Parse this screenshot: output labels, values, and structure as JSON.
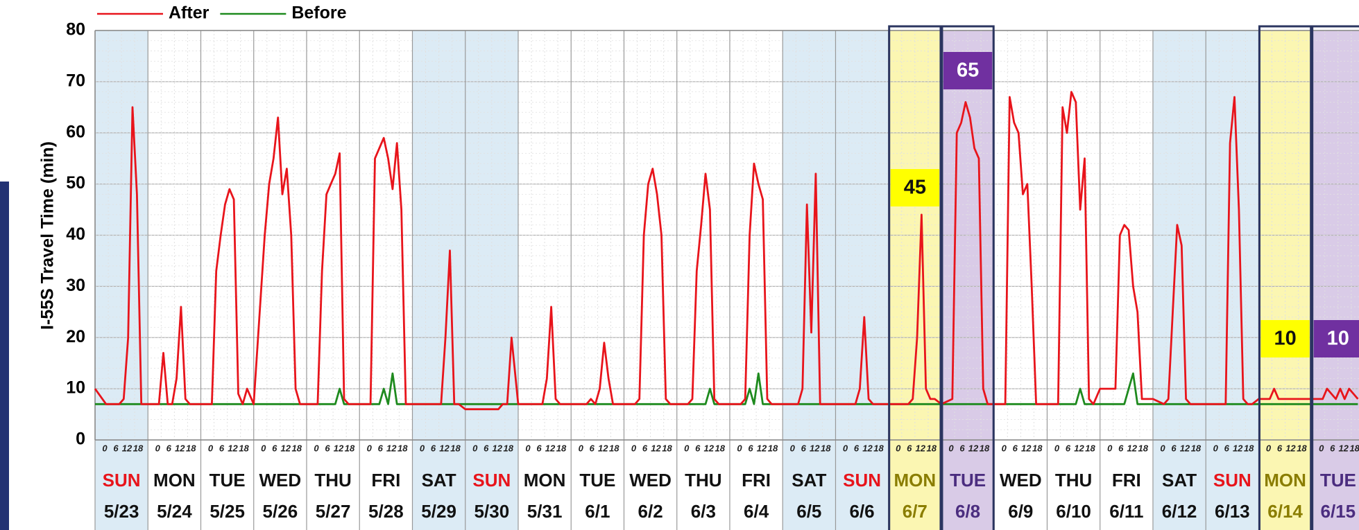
{
  "chart_data": {
    "type": "line",
    "y_label": "I-55S Travel Time (min)",
    "ylim": [
      0,
      80
    ],
    "yticks": [
      0,
      10,
      20,
      30,
      40,
      50,
      60,
      70,
      80
    ],
    "xlim": [
      0,
      573.5
    ],
    "grid": true,
    "hour_labels": [
      0,
      6,
      12,
      18
    ],
    "days": [
      {
        "name": "SUN",
        "date": "5/23",
        "bg": "#dcebf5",
        "color": "#e8141b"
      },
      {
        "name": "MON",
        "date": "5/24",
        "bg": "#ffffff",
        "color": "#111111"
      },
      {
        "name": "TUE",
        "date": "5/25",
        "bg": "#ffffff",
        "color": "#111111"
      },
      {
        "name": "WED",
        "date": "5/26",
        "bg": "#ffffff",
        "color": "#111111"
      },
      {
        "name": "THU",
        "date": "5/27",
        "bg": "#ffffff",
        "color": "#111111"
      },
      {
        "name": "FRI",
        "date": "5/28",
        "bg": "#ffffff",
        "color": "#111111"
      },
      {
        "name": "SAT",
        "date": "5/29",
        "bg": "#dcebf5",
        "color": "#111111"
      },
      {
        "name": "SUN",
        "date": "5/30",
        "bg": "#dcebf5",
        "color": "#e8141b"
      },
      {
        "name": "MON",
        "date": "5/31",
        "bg": "#ffffff",
        "color": "#111111"
      },
      {
        "name": "TUE",
        "date": "6/1",
        "bg": "#ffffff",
        "color": "#111111"
      },
      {
        "name": "WED",
        "date": "6/2",
        "bg": "#ffffff",
        "color": "#111111"
      },
      {
        "name": "THU",
        "date": "6/3",
        "bg": "#ffffff",
        "color": "#111111"
      },
      {
        "name": "FRI",
        "date": "6/4",
        "bg": "#ffffff",
        "color": "#111111"
      },
      {
        "name": "SAT",
        "date": "6/5",
        "bg": "#dcebf5",
        "color": "#111111"
      },
      {
        "name": "SUN",
        "date": "6/6",
        "bg": "#dcebf5",
        "color": "#e8141b"
      },
      {
        "name": "MON",
        "date": "6/7",
        "bg": "#fbf6b2",
        "color": "#8a7d00",
        "outline": "#2b3560"
      },
      {
        "name": "TUE",
        "date": "6/8",
        "bg": "#d9cbe7",
        "color": "#4b2d7f",
        "outline": "#2b3560"
      },
      {
        "name": "WED",
        "date": "6/9",
        "bg": "#ffffff",
        "color": "#111111"
      },
      {
        "name": "THU",
        "date": "6/10",
        "bg": "#ffffff",
        "color": "#111111"
      },
      {
        "name": "FRI",
        "date": "6/11",
        "bg": "#ffffff",
        "color": "#111111"
      },
      {
        "name": "SAT",
        "date": "6/12",
        "bg": "#dcebf5",
        "color": "#111111"
      },
      {
        "name": "SUN",
        "date": "6/13",
        "bg": "#dcebf5",
        "color": "#e8141b"
      },
      {
        "name": "MON",
        "date": "6/14",
        "bg": "#fbf6b2",
        "color": "#8a7d00",
        "outline": "#2b3560"
      },
      {
        "name": "TUE",
        "date": "6/15",
        "bg": "#d9cbe7",
        "color": "#4b2d7f",
        "outline": "#2b3560"
      }
    ],
    "annotations": [
      {
        "value": 45,
        "day": 15,
        "color": "#ffff00",
        "text_color": "#111111"
      },
      {
        "value": 65,
        "day": 16,
        "color": "#7030a0",
        "text_color": "#ffffff"
      },
      {
        "value": 10,
        "day": 22,
        "color": "#ffff00",
        "text_color": "#111111"
      },
      {
        "value": 10,
        "day": 23,
        "color": "#7030a0",
        "text_color": "#ffffff"
      }
    ],
    "x": [
      0,
      5,
      7,
      9,
      11,
      13,
      15,
      17,
      19,
      21,
      24,
      29,
      31,
      33,
      35,
      37,
      39,
      41,
      43,
      45,
      48,
      53,
      55,
      57,
      59,
      61,
      63,
      65,
      67,
      69,
      72,
      77,
      79,
      81,
      83,
      85,
      87,
      89,
      91,
      93,
      96,
      101,
      103,
      105,
      107,
      109,
      111,
      113,
      115,
      117,
      120,
      125,
      127,
      129,
      131,
      133,
      135,
      137,
      139,
      141,
      144,
      149,
      151,
      153,
      155,
      157,
      159,
      161,
      163,
      165,
      168,
      173,
      175,
      177,
      179,
      181,
      183,
      185,
      187,
      189,
      192,
      197,
      199,
      201,
      203,
      205,
      207,
      209,
      211,
      213,
      216,
      221,
      223,
      225,
      227,
      229,
      231,
      233,
      235,
      237,
      240,
      245,
      247,
      249,
      251,
      253,
      255,
      257,
      259,
      261,
      264,
      269,
      271,
      273,
      275,
      277,
      279,
      281,
      283,
      285,
      288,
      293,
      295,
      297,
      299,
      301,
      303,
      305,
      307,
      309,
      312,
      317,
      319,
      321,
      323,
      325,
      327,
      329,
      331,
      333,
      336,
      341,
      343,
      345,
      347,
      349,
      351,
      353,
      355,
      357,
      360,
      365,
      367,
      369,
      371,
      373,
      375,
      377,
      379,
      381,
      384,
      389,
      391,
      393,
      395,
      397,
      399,
      401,
      403,
      405,
      408,
      413,
      415,
      417,
      419,
      421,
      423,
      425,
      427,
      429,
      432,
      437,
      439,
      441,
      443,
      445,
      447,
      449,
      451,
      453,
      456,
      461,
      463,
      465,
      467,
      469,
      471,
      473,
      475,
      477,
      480,
      485,
      487,
      489,
      491,
      493,
      495,
      497,
      499,
      501,
      504,
      509,
      511,
      513,
      515,
      517,
      519,
      521,
      523,
      525,
      528,
      533,
      535,
      537,
      539,
      541,
      543,
      545,
      547,
      549,
      552,
      557,
      559,
      561,
      563,
      565,
      567,
      569,
      571,
      573
    ],
    "series": [
      {
        "name": "After",
        "color": "#e8141b",
        "values": [
          10,
          7,
          7,
          7,
          7,
          8,
          20,
          65,
          48,
          7,
          7,
          7,
          17,
          7,
          7,
          12,
          26,
          8,
          7,
          7,
          7,
          7,
          33,
          40,
          46,
          49,
          47,
          9,
          7,
          10,
          7,
          40,
          50,
          55,
          63,
          48,
          53,
          40,
          10,
          7,
          7,
          7,
          33,
          48,
          50,
          52,
          56,
          8,
          7,
          7,
          7,
          7,
          55,
          57,
          59,
          55,
          49,
          58,
          45,
          7,
          7,
          7,
          7,
          7,
          7,
          7,
          20,
          37,
          7,
          7,
          6,
          6,
          6,
          6,
          6,
          6,
          6,
          7,
          7,
          20,
          7,
          7,
          7,
          7,
          7,
          12,
          26,
          8,
          7,
          7,
          7,
          7,
          7,
          8,
          7,
          10,
          19,
          12,
          7,
          7,
          7,
          7,
          8,
          40,
          50,
          53,
          48,
          40,
          8,
          7,
          7,
          7,
          8,
          33,
          42,
          52,
          45,
          8,
          7,
          7,
          7,
          7,
          8,
          40,
          54,
          50,
          47,
          8,
          7,
          7,
          7,
          7,
          7,
          10,
          46,
          21,
          52,
          7,
          7,
          7,
          7,
          7,
          7,
          7,
          10,
          24,
          8,
          7,
          7,
          7,
          7,
          7,
          7,
          7,
          8,
          20,
          44,
          10,
          8,
          8,
          7,
          8,
          60,
          62,
          66,
          63,
          57,
          55,
          10,
          7,
          7,
          7,
          67,
          62,
          60,
          48,
          50,
          30,
          7,
          7,
          7,
          7,
          65,
          60,
          68,
          66,
          45,
          55,
          8,
          7,
          10,
          10,
          10,
          40,
          42,
          41,
          30,
          25,
          8,
          8,
          8,
          7,
          8,
          25,
          42,
          38,
          8,
          7,
          7,
          7,
          7,
          7,
          7,
          7,
          58,
          67,
          45,
          8,
          7,
          7,
          8,
          8,
          10,
          8,
          8,
          8,
          8,
          8,
          8,
          8,
          8,
          8,
          10,
          9,
          8,
          10,
          8,
          10,
          9,
          8
        ]
      },
      {
        "name": "Before",
        "color": "#1e8a1e",
        "values": [
          7,
          7,
          7,
          7,
          7,
          7,
          7,
          7,
          7,
          7,
          7,
          7,
          7,
          7,
          7,
          7,
          7,
          7,
          7,
          7,
          7,
          7,
          7,
          7,
          7,
          7,
          7,
          7,
          7,
          7,
          7,
          7,
          7,
          7,
          7,
          7,
          7,
          7,
          7,
          7,
          7,
          7,
          7,
          7,
          7,
          7,
          10,
          7,
          7,
          7,
          7,
          7,
          7,
          7,
          10,
          7,
          13,
          7,
          7,
          7,
          7,
          7,
          7,
          7,
          7,
          7,
          7,
          7,
          7,
          7,
          7,
          7,
          7,
          7,
          7,
          7,
          7,
          7,
          7,
          7,
          7,
          7,
          7,
          7,
          7,
          7,
          7,
          7,
          7,
          7,
          7,
          7,
          7,
          7,
          7,
          7,
          7,
          7,
          7,
          7,
          7,
          7,
          7,
          7,
          7,
          7,
          7,
          7,
          7,
          7,
          7,
          7,
          7,
          7,
          7,
          7,
          10,
          7,
          7,
          7,
          7,
          7,
          7,
          10,
          7,
          13,
          7,
          7,
          7,
          7,
          7,
          7,
          7,
          7,
          7,
          7,
          7,
          7,
          7,
          7,
          7,
          7,
          7,
          7,
          7,
          7,
          7,
          7,
          7,
          7,
          7,
          7,
          7,
          7,
          7,
          7,
          7,
          7,
          7,
          7,
          7,
          7,
          7,
          7,
          7,
          7,
          7,
          7,
          7,
          7,
          7,
          7,
          7,
          7,
          7,
          7,
          7,
          7,
          7,
          7,
          7,
          7,
          7,
          7,
          7,
          7,
          10,
          7,
          7,
          7,
          7,
          7,
          7,
          7,
          7,
          10,
          13,
          7,
          7,
          7,
          7,
          7,
          7,
          7,
          7,
          7,
          7,
          7,
          7,
          7,
          7,
          7,
          7,
          7,
          7,
          7,
          7,
          7,
          7,
          7,
          7,
          7,
          7,
          7,
          7,
          7,
          7,
          7,
          7,
          7,
          7,
          7,
          7,
          7,
          7,
          7,
          7,
          7,
          7,
          7
        ]
      }
    ]
  }
}
